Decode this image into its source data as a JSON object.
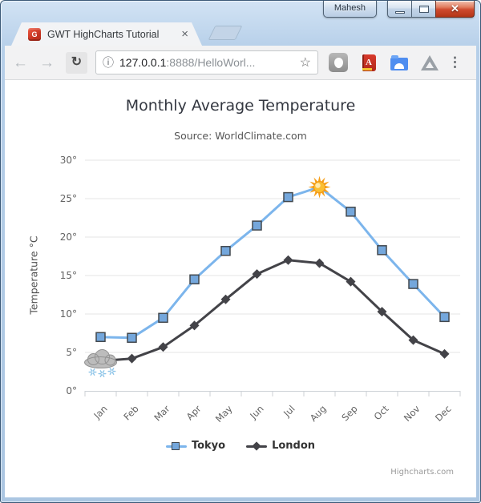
{
  "window": {
    "profile_button": "Mahesh",
    "close_glyph": "✕"
  },
  "browser": {
    "tab_title": "GWT HighCharts Tutorial",
    "favicon_letter": "G",
    "tab_close_glyph": "×",
    "back_glyph": "←",
    "forward_glyph": "→",
    "reload_glyph": "↻",
    "url": {
      "info_glyph": "ⓘ",
      "host": "127.0.0.1",
      "rest": ":8888/HelloWorl..."
    },
    "star_glyph": "☆",
    "extensions_book_letter": "A",
    "menu_glyph": "⋮"
  },
  "colors": {
    "window_frame": "#b6cfe9",
    "close_button_red": "#cf4a2e",
    "tokyo": "#7cb5ec",
    "london": "#434348"
  },
  "chart_data": {
    "type": "line",
    "title": "Monthly Average Temperature",
    "subtitle": "Source: WorldClimate.com",
    "categories": [
      "Jan",
      "Feb",
      "Mar",
      "Apr",
      "May",
      "Jun",
      "Jul",
      "Aug",
      "Sep",
      "Oct",
      "Nov",
      "Dec"
    ],
    "xlabel": "",
    "ylabel": "Temperature °C",
    "ylim": [
      0,
      30
    ],
    "ytick_step": 5,
    "ytick_suffix": "°",
    "grid": true,
    "legend_position": "bottom",
    "series": [
      {
        "name": "Tokyo",
        "color": "#7cb5ec",
        "marker": "square",
        "marker_fill": "#74a7dc",
        "marker_stroke": "#42484e",
        "values": [
          7.0,
          6.9,
          9.5,
          14.5,
          18.2,
          21.5,
          25.2,
          26.5,
          23.3,
          18.3,
          13.9,
          9.6
        ]
      },
      {
        "name": "London",
        "color": "#434348",
        "marker": "diamond",
        "marker_fill": "#434348",
        "marker_stroke": "#434348",
        "values": [
          3.9,
          4.2,
          5.7,
          8.5,
          11.9,
          15.2,
          17.0,
          16.6,
          14.2,
          10.3,
          6.6,
          4.8
        ]
      }
    ],
    "annotations": [
      {
        "type": "sun-icon",
        "series": "Tokyo",
        "index": 7
      },
      {
        "type": "snow-cloud-icon",
        "series": "London",
        "index": 0
      }
    ],
    "credit": "Highcharts.com"
  }
}
